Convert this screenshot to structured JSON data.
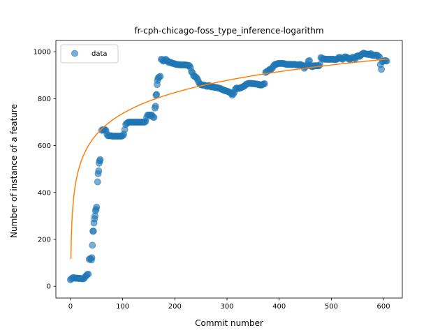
{
  "chart_data": {
    "type": "scatter",
    "title": "fr-cph-chicago-foss_type_inference-logarithm",
    "xlabel": "Commit number",
    "ylabel": "Number of instance of a feature",
    "xlim": [
      -28,
      636
    ],
    "ylim": [
      -50,
      1048
    ],
    "xticks": [
      0,
      100,
      200,
      300,
      400,
      500,
      600
    ],
    "yticks": [
      0,
      200,
      400,
      600,
      800,
      1000
    ],
    "legend": {
      "position": "top-left",
      "entries": [
        "data"
      ]
    },
    "colors": {
      "data": "#1f77b4",
      "fit": "#ff7f0e"
    },
    "series": [
      {
        "name": "data",
        "kind": "scatter",
        "points": [
          [
            0,
            28
          ],
          [
            2,
            32
          ],
          [
            4,
            36
          ],
          [
            6,
            37
          ],
          [
            8,
            35
          ],
          [
            10,
            34
          ],
          [
            12,
            35
          ],
          [
            14,
            34
          ],
          [
            16,
            33
          ],
          [
            18,
            34
          ],
          [
            20,
            33
          ],
          [
            22,
            32
          ],
          [
            24,
            32
          ],
          [
            26,
            33
          ],
          [
            28,
            40
          ],
          [
            30,
            45
          ],
          [
            32,
            50
          ],
          [
            34,
            52
          ],
          [
            36,
            115
          ],
          [
            38,
            118
          ],
          [
            40,
            112
          ],
          [
            41,
            122
          ],
          [
            42,
            175
          ],
          [
            43,
            235
          ],
          [
            44,
            235
          ],
          [
            45,
            270
          ],
          [
            46,
            288
          ],
          [
            47,
            300
          ],
          [
            48,
            322
          ],
          [
            49,
            328
          ],
          [
            50,
            338
          ],
          [
            52,
            445
          ],
          [
            53,
            480
          ],
          [
            54,
            492
          ],
          [
            55,
            525
          ],
          [
            56,
            535
          ],
          [
            57,
            540
          ],
          [
            60,
            665
          ],
          [
            62,
            668
          ],
          [
            64,
            666
          ],
          [
            66,
            668
          ],
          [
            68,
            664
          ],
          [
            70,
            648
          ],
          [
            72,
            642
          ],
          [
            74,
            642
          ],
          [
            76,
            642
          ],
          [
            78,
            642
          ],
          [
            80,
            640
          ],
          [
            82,
            640
          ],
          [
            84,
            640
          ],
          [
            86,
            640
          ],
          [
            88,
            640
          ],
          [
            90,
            640
          ],
          [
            92,
            640
          ],
          [
            94,
            640
          ],
          [
            96,
            640
          ],
          [
            98,
            640
          ],
          [
            100,
            642
          ],
          [
            102,
            648
          ],
          [
            104,
            668
          ],
          [
            106,
            690
          ],
          [
            108,
            695
          ],
          [
            110,
            698
          ],
          [
            112,
            700
          ],
          [
            114,
            700
          ],
          [
            116,
            700
          ],
          [
            118,
            700
          ],
          [
            120,
            700
          ],
          [
            122,
            700
          ],
          [
            124,
            700
          ],
          [
            126,
            700
          ],
          [
            128,
            700
          ],
          [
            130,
            700
          ],
          [
            132,
            700
          ],
          [
            134,
            700
          ],
          [
            136,
            700
          ],
          [
            138,
            700
          ],
          [
            140,
            700
          ],
          [
            142,
            700
          ],
          [
            144,
            703
          ],
          [
            146,
            720
          ],
          [
            148,
            730
          ],
          [
            150,
            730
          ],
          [
            152,
            730
          ],
          [
            154,
            730
          ],
          [
            156,
            730
          ],
          [
            158,
            722
          ],
          [
            160,
            720
          ],
          [
            162,
            760
          ],
          [
            163,
            768
          ],
          [
            164,
            815
          ],
          [
            165,
            818
          ],
          [
            166,
            860
          ],
          [
            167,
            878
          ],
          [
            168,
            888
          ],
          [
            170,
            892
          ],
          [
            172,
            895
          ],
          [
            174,
            968
          ],
          [
            176,
            965
          ],
          [
            178,
            960
          ],
          [
            180,
            962
          ],
          [
            182,
            968
          ],
          [
            184,
            965
          ],
          [
            186,
            960
          ],
          [
            188,
            955
          ],
          [
            190,
            955
          ],
          [
            192,
            955
          ],
          [
            194,
            952
          ],
          [
            196,
            950
          ],
          [
            198,
            950
          ],
          [
            200,
            948
          ],
          [
            202,
            946
          ],
          [
            204,
            946
          ],
          [
            206,
            945
          ],
          [
            208,
            945
          ],
          [
            210,
            944
          ],
          [
            212,
            944
          ],
          [
            214,
            944
          ],
          [
            216,
            944
          ],
          [
            218,
            944
          ],
          [
            220,
            944
          ],
          [
            222,
            943
          ],
          [
            224,
            942
          ],
          [
            226,
            942
          ],
          [
            228,
            940
          ],
          [
            230,
            932
          ],
          [
            232,
            915
          ],
          [
            234,
            910
          ],
          [
            236,
            898
          ],
          [
            238,
            895
          ],
          [
            240,
            892
          ],
          [
            242,
            888
          ],
          [
            244,
            880
          ],
          [
            246,
            870
          ],
          [
            248,
            862
          ],
          [
            250,
            860
          ],
          [
            252,
            858
          ],
          [
            254,
            858
          ],
          [
            256,
            858
          ],
          [
            258,
            856
          ],
          [
            260,
            855
          ],
          [
            262,
            852
          ],
          [
            264,
            855
          ],
          [
            266,
            856
          ],
          [
            268,
            852
          ],
          [
            270,
            850
          ],
          [
            272,
            850
          ],
          [
            274,
            850
          ],
          [
            276,
            848
          ],
          [
            278,
            848
          ],
          [
            280,
            847
          ],
          [
            282,
            846
          ],
          [
            284,
            845
          ],
          [
            286,
            844
          ],
          [
            288,
            842
          ],
          [
            290,
            840
          ],
          [
            292,
            838
          ],
          [
            294,
            836
          ],
          [
            296,
            834
          ],
          [
            298,
            833
          ],
          [
            300,
            832
          ],
          [
            302,
            830
          ],
          [
            304,
            828
          ],
          [
            306,
            826
          ],
          [
            308,
            822
          ],
          [
            310,
            815
          ],
          [
            312,
            820
          ],
          [
            314,
            828
          ],
          [
            316,
            840
          ],
          [
            318,
            845
          ],
          [
            320,
            845
          ],
          [
            322,
            843
          ],
          [
            324,
            845
          ],
          [
            326,
            846
          ],
          [
            328,
            848
          ],
          [
            330,
            850
          ],
          [
            332,
            852
          ],
          [
            334,
            855
          ],
          [
            336,
            860
          ],
          [
            338,
            862
          ],
          [
            340,
            864
          ],
          [
            342,
            865
          ],
          [
            344,
            865
          ],
          [
            346,
            865
          ],
          [
            348,
            864
          ],
          [
            350,
            864
          ],
          [
            352,
            864
          ],
          [
            354,
            863
          ],
          [
            356,
            862
          ],
          [
            358,
            862
          ],
          [
            360,
            860
          ],
          [
            362,
            860
          ],
          [
            364,
            858
          ],
          [
            366,
            858
          ],
          [
            368,
            860
          ],
          [
            370,
            862
          ],
          [
            372,
            864
          ],
          [
            374,
            912
          ],
          [
            376,
            915
          ],
          [
            378,
            918
          ],
          [
            380,
            920
          ],
          [
            382,
            925
          ],
          [
            384,
            925
          ],
          [
            386,
            928
          ],
          [
            388,
            935
          ],
          [
            390,
            942
          ],
          [
            392,
            946
          ],
          [
            394,
            946
          ],
          [
            396,
            948
          ],
          [
            398,
            950
          ],
          [
            400,
            950
          ],
          [
            402,
            950
          ],
          [
            404,
            950
          ],
          [
            406,
            950
          ],
          [
            408,
            950
          ],
          [
            410,
            948
          ],
          [
            412,
            948
          ],
          [
            414,
            946
          ],
          [
            416,
            946
          ],
          [
            418,
            946
          ],
          [
            420,
            946
          ],
          [
            422,
            946
          ],
          [
            424,
            946
          ],
          [
            426,
            945
          ],
          [
            428,
            946
          ],
          [
            430,
            946
          ],
          [
            432,
            945
          ],
          [
            434,
            944
          ],
          [
            436,
            944
          ],
          [
            438,
            944
          ],
          [
            440,
            946
          ],
          [
            442,
            944
          ],
          [
            444,
            942
          ],
          [
            446,
            940
          ],
          [
            448,
            930
          ],
          [
            450,
            935
          ],
          [
            452,
            940
          ],
          [
            454,
            945
          ],
          [
            456,
            960
          ],
          [
            458,
            962
          ],
          [
            460,
            940
          ],
          [
            462,
            938
          ],
          [
            464,
            936
          ],
          [
            466,
            940
          ],
          [
            468,
            940
          ],
          [
            470,
            940
          ],
          [
            472,
            940
          ],
          [
            474,
            940
          ],
          [
            476,
            940
          ],
          [
            478,
            945
          ],
          [
            480,
            975
          ],
          [
            482,
            972
          ],
          [
            484,
            968
          ],
          [
            486,
            970
          ],
          [
            488,
            968
          ],
          [
            490,
            968
          ],
          [
            492,
            968
          ],
          [
            494,
            968
          ],
          [
            496,
            968
          ],
          [
            498,
            968
          ],
          [
            500,
            968
          ],
          [
            502,
            968
          ],
          [
            504,
            968
          ],
          [
            506,
            966
          ],
          [
            508,
            966
          ],
          [
            510,
            968
          ],
          [
            512,
            970
          ],
          [
            514,
            975
          ],
          [
            516,
            976
          ],
          [
            518,
            972
          ],
          [
            520,
            970
          ],
          [
            522,
            968
          ],
          [
            524,
            975
          ],
          [
            526,
            978
          ],
          [
            528,
            978
          ],
          [
            530,
            976
          ],
          [
            532,
            972
          ],
          [
            534,
            968
          ],
          [
            536,
            968
          ],
          [
            538,
            972
          ],
          [
            540,
            975
          ],
          [
            542,
            976
          ],
          [
            544,
            972
          ],
          [
            546,
            970
          ],
          [
            548,
            980
          ],
          [
            550,
            982
          ],
          [
            552,
            982
          ],
          [
            554,
            980
          ],
          [
            556,
            985
          ],
          [
            558,
            988
          ],
          [
            560,
            992
          ],
          [
            562,
            994
          ],
          [
            564,
            992
          ],
          [
            566,
            990
          ],
          [
            568,
            990
          ],
          [
            570,
            990
          ],
          [
            572,
            988
          ],
          [
            574,
            990
          ],
          [
            576,
            992
          ],
          [
            578,
            985
          ],
          [
            580,
            985
          ],
          [
            582,
            985
          ],
          [
            584,
            985
          ],
          [
            586,
            985
          ],
          [
            588,
            985
          ],
          [
            590,
            980
          ],
          [
            592,
            978
          ],
          [
            594,
            945
          ],
          [
            596,
            925
          ],
          [
            598,
            958
          ],
          [
            600,
            960
          ],
          [
            602,
            962
          ],
          [
            604,
            962
          ],
          [
            606,
            960
          ]
        ]
      },
      {
        "name": "",
        "kind": "line",
        "model": "a + b*ln(x)",
        "a": 145,
        "b": 128.5,
        "x_range": [
          0.8,
          607
        ]
      }
    ]
  }
}
